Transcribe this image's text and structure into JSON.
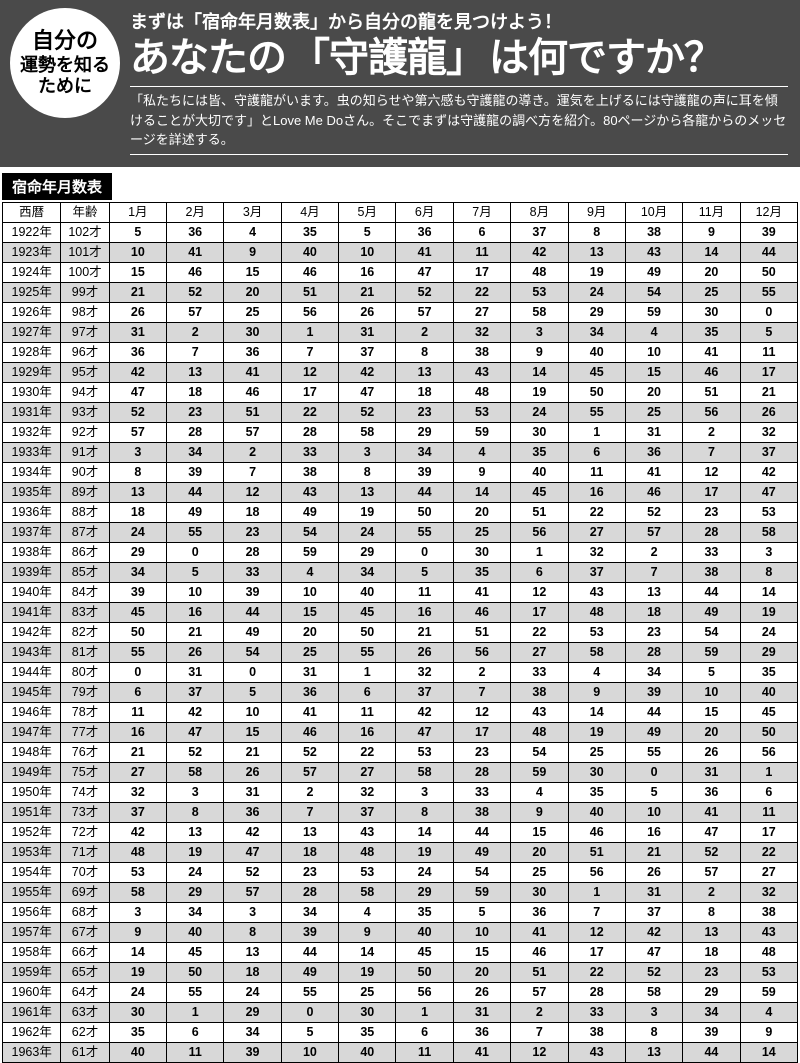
{
  "header": {
    "badge_l1": "自分の",
    "badge_l2": "運勢を知る",
    "badge_l3": "ために",
    "subtitle_pre": "まずは",
    "subtitle_em": "「宿命年月数表」",
    "subtitle_post": "から自分の龍を見つけよう！",
    "main_pre": "あなたの",
    "main_framed": "「守護龍」",
    "main_post": "は何ですか？",
    "desc": "「私たちには皆、守護龍がいます。虫の知らせや第六感も守護龍の導き。運気を上げるには守護龍の声に耳を傾けることが大切です」とLove Me Doさん。そこでまずは守護龍の調べ方を紹介。80ページから各龍からのメッセージを詳述する。"
  },
  "table": {
    "title": "宿命年月数表",
    "head_year": "西暦",
    "head_age": "年齢",
    "months": [
      "1月",
      "2月",
      "3月",
      "4月",
      "5月",
      "6月",
      "7月",
      "8月",
      "9月",
      "10月",
      "11月",
      "12月"
    ],
    "colors": {
      "shade": "#d8d8d8",
      "border": "#000000",
      "header_bg": "#4a4a4a"
    },
    "rows": [
      {
        "y": "1922年",
        "a": "102才",
        "v": [
          5,
          36,
          4,
          35,
          5,
          36,
          6,
          37,
          8,
          38,
          9,
          39
        ]
      },
      {
        "y": "1923年",
        "a": "101才",
        "v": [
          10,
          41,
          9,
          40,
          10,
          41,
          11,
          42,
          13,
          43,
          14,
          44
        ]
      },
      {
        "y": "1924年",
        "a": "100才",
        "v": [
          15,
          46,
          15,
          46,
          16,
          47,
          17,
          48,
          19,
          49,
          20,
          50
        ]
      },
      {
        "y": "1925年",
        "a": "99才",
        "v": [
          21,
          52,
          20,
          51,
          21,
          52,
          22,
          53,
          24,
          54,
          25,
          55
        ]
      },
      {
        "y": "1926年",
        "a": "98才",
        "v": [
          26,
          57,
          25,
          56,
          26,
          57,
          27,
          58,
          29,
          59,
          30,
          0
        ]
      },
      {
        "y": "1927年",
        "a": "97才",
        "v": [
          31,
          2,
          30,
          1,
          31,
          2,
          32,
          3,
          34,
          4,
          35,
          5
        ]
      },
      {
        "y": "1928年",
        "a": "96才",
        "v": [
          36,
          7,
          36,
          7,
          37,
          8,
          38,
          9,
          40,
          10,
          41,
          11
        ]
      },
      {
        "y": "1929年",
        "a": "95才",
        "v": [
          42,
          13,
          41,
          12,
          42,
          13,
          43,
          14,
          45,
          15,
          46,
          17
        ]
      },
      {
        "y": "1930年",
        "a": "94才",
        "v": [
          47,
          18,
          46,
          17,
          47,
          18,
          48,
          19,
          50,
          20,
          51,
          21
        ]
      },
      {
        "y": "1931年",
        "a": "93才",
        "v": [
          52,
          23,
          51,
          22,
          52,
          23,
          53,
          24,
          55,
          25,
          56,
          26
        ]
      },
      {
        "y": "1932年",
        "a": "92才",
        "v": [
          57,
          28,
          57,
          28,
          58,
          29,
          59,
          30,
          1,
          31,
          2,
          32
        ]
      },
      {
        "y": "1933年",
        "a": "91才",
        "v": [
          3,
          34,
          2,
          33,
          3,
          34,
          4,
          35,
          6,
          36,
          7,
          37
        ]
      },
      {
        "y": "1934年",
        "a": "90才",
        "v": [
          8,
          39,
          7,
          38,
          8,
          39,
          9,
          40,
          11,
          41,
          12,
          42
        ]
      },
      {
        "y": "1935年",
        "a": "89才",
        "v": [
          13,
          44,
          12,
          43,
          13,
          44,
          14,
          45,
          16,
          46,
          17,
          47
        ]
      },
      {
        "y": "1936年",
        "a": "88才",
        "v": [
          18,
          49,
          18,
          49,
          19,
          50,
          20,
          51,
          22,
          52,
          23,
          53
        ]
      },
      {
        "y": "1937年",
        "a": "87才",
        "v": [
          24,
          55,
          23,
          54,
          24,
          55,
          25,
          56,
          27,
          57,
          28,
          58
        ]
      },
      {
        "y": "1938年",
        "a": "86才",
        "v": [
          29,
          0,
          28,
          59,
          29,
          0,
          30,
          1,
          32,
          2,
          33,
          3
        ]
      },
      {
        "y": "1939年",
        "a": "85才",
        "v": [
          34,
          5,
          33,
          4,
          34,
          5,
          35,
          6,
          37,
          7,
          38,
          8
        ]
      },
      {
        "y": "1940年",
        "a": "84才",
        "v": [
          39,
          10,
          39,
          10,
          40,
          11,
          41,
          12,
          43,
          13,
          44,
          14
        ]
      },
      {
        "y": "1941年",
        "a": "83才",
        "v": [
          45,
          16,
          44,
          15,
          45,
          16,
          46,
          17,
          48,
          18,
          49,
          19
        ]
      },
      {
        "y": "1942年",
        "a": "82才",
        "v": [
          50,
          21,
          49,
          20,
          50,
          21,
          51,
          22,
          53,
          23,
          54,
          24
        ]
      },
      {
        "y": "1943年",
        "a": "81才",
        "v": [
          55,
          26,
          54,
          25,
          55,
          26,
          56,
          27,
          58,
          28,
          59,
          29
        ]
      },
      {
        "y": "1944年",
        "a": "80才",
        "v": [
          0,
          31,
          0,
          31,
          1,
          32,
          2,
          33,
          4,
          34,
          5,
          35
        ]
      },
      {
        "y": "1945年",
        "a": "79才",
        "v": [
          6,
          37,
          5,
          36,
          6,
          37,
          7,
          38,
          9,
          39,
          10,
          40
        ]
      },
      {
        "y": "1946年",
        "a": "78才",
        "v": [
          11,
          42,
          10,
          41,
          11,
          42,
          12,
          43,
          14,
          44,
          15,
          45
        ]
      },
      {
        "y": "1947年",
        "a": "77才",
        "v": [
          16,
          47,
          15,
          46,
          16,
          47,
          17,
          48,
          19,
          49,
          20,
          50
        ]
      },
      {
        "y": "1948年",
        "a": "76才",
        "v": [
          21,
          52,
          21,
          52,
          22,
          53,
          23,
          54,
          25,
          55,
          26,
          56
        ]
      },
      {
        "y": "1949年",
        "a": "75才",
        "v": [
          27,
          58,
          26,
          57,
          27,
          58,
          28,
          59,
          30,
          0,
          31,
          1
        ]
      },
      {
        "y": "1950年",
        "a": "74才",
        "v": [
          32,
          3,
          31,
          2,
          32,
          3,
          33,
          4,
          35,
          5,
          36,
          6
        ]
      },
      {
        "y": "1951年",
        "a": "73才",
        "v": [
          37,
          8,
          36,
          7,
          37,
          8,
          38,
          9,
          40,
          10,
          41,
          11
        ]
      },
      {
        "y": "1952年",
        "a": "72才",
        "v": [
          42,
          13,
          42,
          13,
          43,
          14,
          44,
          15,
          46,
          16,
          47,
          17
        ]
      },
      {
        "y": "1953年",
        "a": "71才",
        "v": [
          48,
          19,
          47,
          18,
          48,
          19,
          49,
          20,
          51,
          21,
          52,
          22
        ]
      },
      {
        "y": "1954年",
        "a": "70才",
        "v": [
          53,
          24,
          52,
          23,
          53,
          24,
          54,
          25,
          56,
          26,
          57,
          27
        ]
      },
      {
        "y": "1955年",
        "a": "69才",
        "v": [
          58,
          29,
          57,
          28,
          58,
          29,
          59,
          30,
          1,
          31,
          2,
          32
        ]
      },
      {
        "y": "1956年",
        "a": "68才",
        "v": [
          3,
          34,
          3,
          34,
          4,
          35,
          5,
          36,
          7,
          37,
          8,
          38
        ]
      },
      {
        "y": "1957年",
        "a": "67才",
        "v": [
          9,
          40,
          8,
          39,
          9,
          40,
          10,
          41,
          12,
          42,
          13,
          43
        ]
      },
      {
        "y": "1958年",
        "a": "66才",
        "v": [
          14,
          45,
          13,
          44,
          14,
          45,
          15,
          46,
          17,
          47,
          18,
          48
        ]
      },
      {
        "y": "1959年",
        "a": "65才",
        "v": [
          19,
          50,
          18,
          49,
          19,
          50,
          20,
          51,
          22,
          52,
          23,
          53
        ]
      },
      {
        "y": "1960年",
        "a": "64才",
        "v": [
          24,
          55,
          24,
          55,
          25,
          56,
          26,
          57,
          28,
          58,
          29,
          59
        ]
      },
      {
        "y": "1961年",
        "a": "63才",
        "v": [
          30,
          1,
          29,
          0,
          30,
          1,
          31,
          2,
          33,
          3,
          34,
          4
        ]
      },
      {
        "y": "1962年",
        "a": "62才",
        "v": [
          35,
          6,
          34,
          5,
          35,
          6,
          36,
          7,
          38,
          8,
          39,
          9
        ]
      },
      {
        "y": "1963年",
        "a": "61才",
        "v": [
          40,
          11,
          39,
          10,
          40,
          11,
          41,
          12,
          43,
          13,
          44,
          14
        ]
      }
    ]
  }
}
